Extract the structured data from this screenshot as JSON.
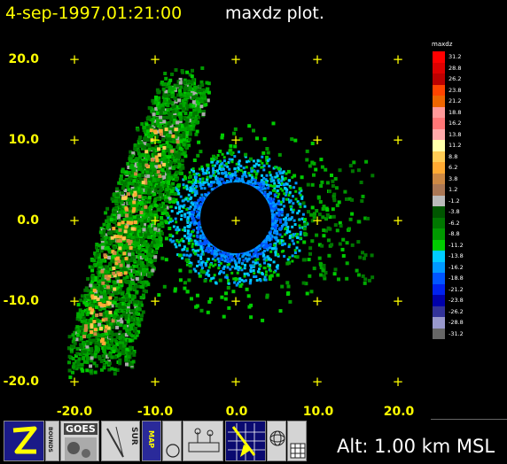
{
  "title": {
    "datetime": "4-sep-1997,01:21:00",
    "plot_name": "maxdz plot."
  },
  "axes": {
    "y_ticks": [
      "20.0",
      "10.0",
      "0.0",
      "-10.0",
      "-20.0"
    ],
    "x_ticks": [
      "-20.0",
      "-10.0",
      "0.0",
      "10.0",
      "20.0"
    ]
  },
  "legend": {
    "title": "maxdz",
    "levels": [
      "31.2",
      "28.8",
      "26.2",
      "23.8",
      "21.2",
      "18.8",
      "16.2",
      "13.8",
      "11.2",
      "8.8",
      "6.2",
      "3.8",
      "1.2",
      "-1.2",
      "-3.8",
      "-6.2",
      "-8.8",
      "-11.2",
      "-13.8",
      "-16.2",
      "-18.8",
      "-21.2",
      "-23.8",
      "-26.2",
      "-28.8",
      "-31.2"
    ],
    "colors": [
      "#ff0000",
      "#dd0000",
      "#bb0000",
      "#ff4400",
      "#ee6600",
      "#ff9999",
      "#ff7777",
      "#ffaaaa",
      "#ffffaa",
      "#ffcc55",
      "#ffaa33",
      "#cc8844",
      "#aa7755",
      "#bbbbbb",
      "#005500",
      "#007700",
      "#009900",
      "#00cc00",
      "#00ccff",
      "#0099ff",
      "#0055ff",
      "#0022ee",
      "#0000aa",
      "#333399",
      "#9999cc",
      "#666666"
    ]
  },
  "toolbar": {
    "buttons": [
      {
        "name": "zoom-tool-button",
        "icon": "z-icon",
        "label": ""
      },
      {
        "name": "bounds-tool-button",
        "icon": "bounds-icon",
        "label": "BOUNDS"
      },
      {
        "name": "goes-ir-button",
        "icon": "satellite-icon",
        "label": "GOES"
      },
      {
        "name": "sur-button",
        "icon": "radar-beam-icon",
        "label": "SUR"
      },
      {
        "name": "map-button",
        "icon": "map-icon",
        "label": "MAP"
      },
      {
        "name": "circle-button",
        "icon": "circle-icon",
        "label": ""
      },
      {
        "name": "station-button",
        "icon": "station-icon",
        "label": ""
      },
      {
        "name": "cross-section-button",
        "icon": "cross-section-icon",
        "label": ""
      },
      {
        "name": "mesh-ball-button",
        "icon": "mesh-ball-icon",
        "label": ""
      },
      {
        "name": "grid-button",
        "icon": "grid-icon",
        "label": ""
      }
    ]
  },
  "status": {
    "altitude": "Alt: 1.00 km MSL"
  }
}
